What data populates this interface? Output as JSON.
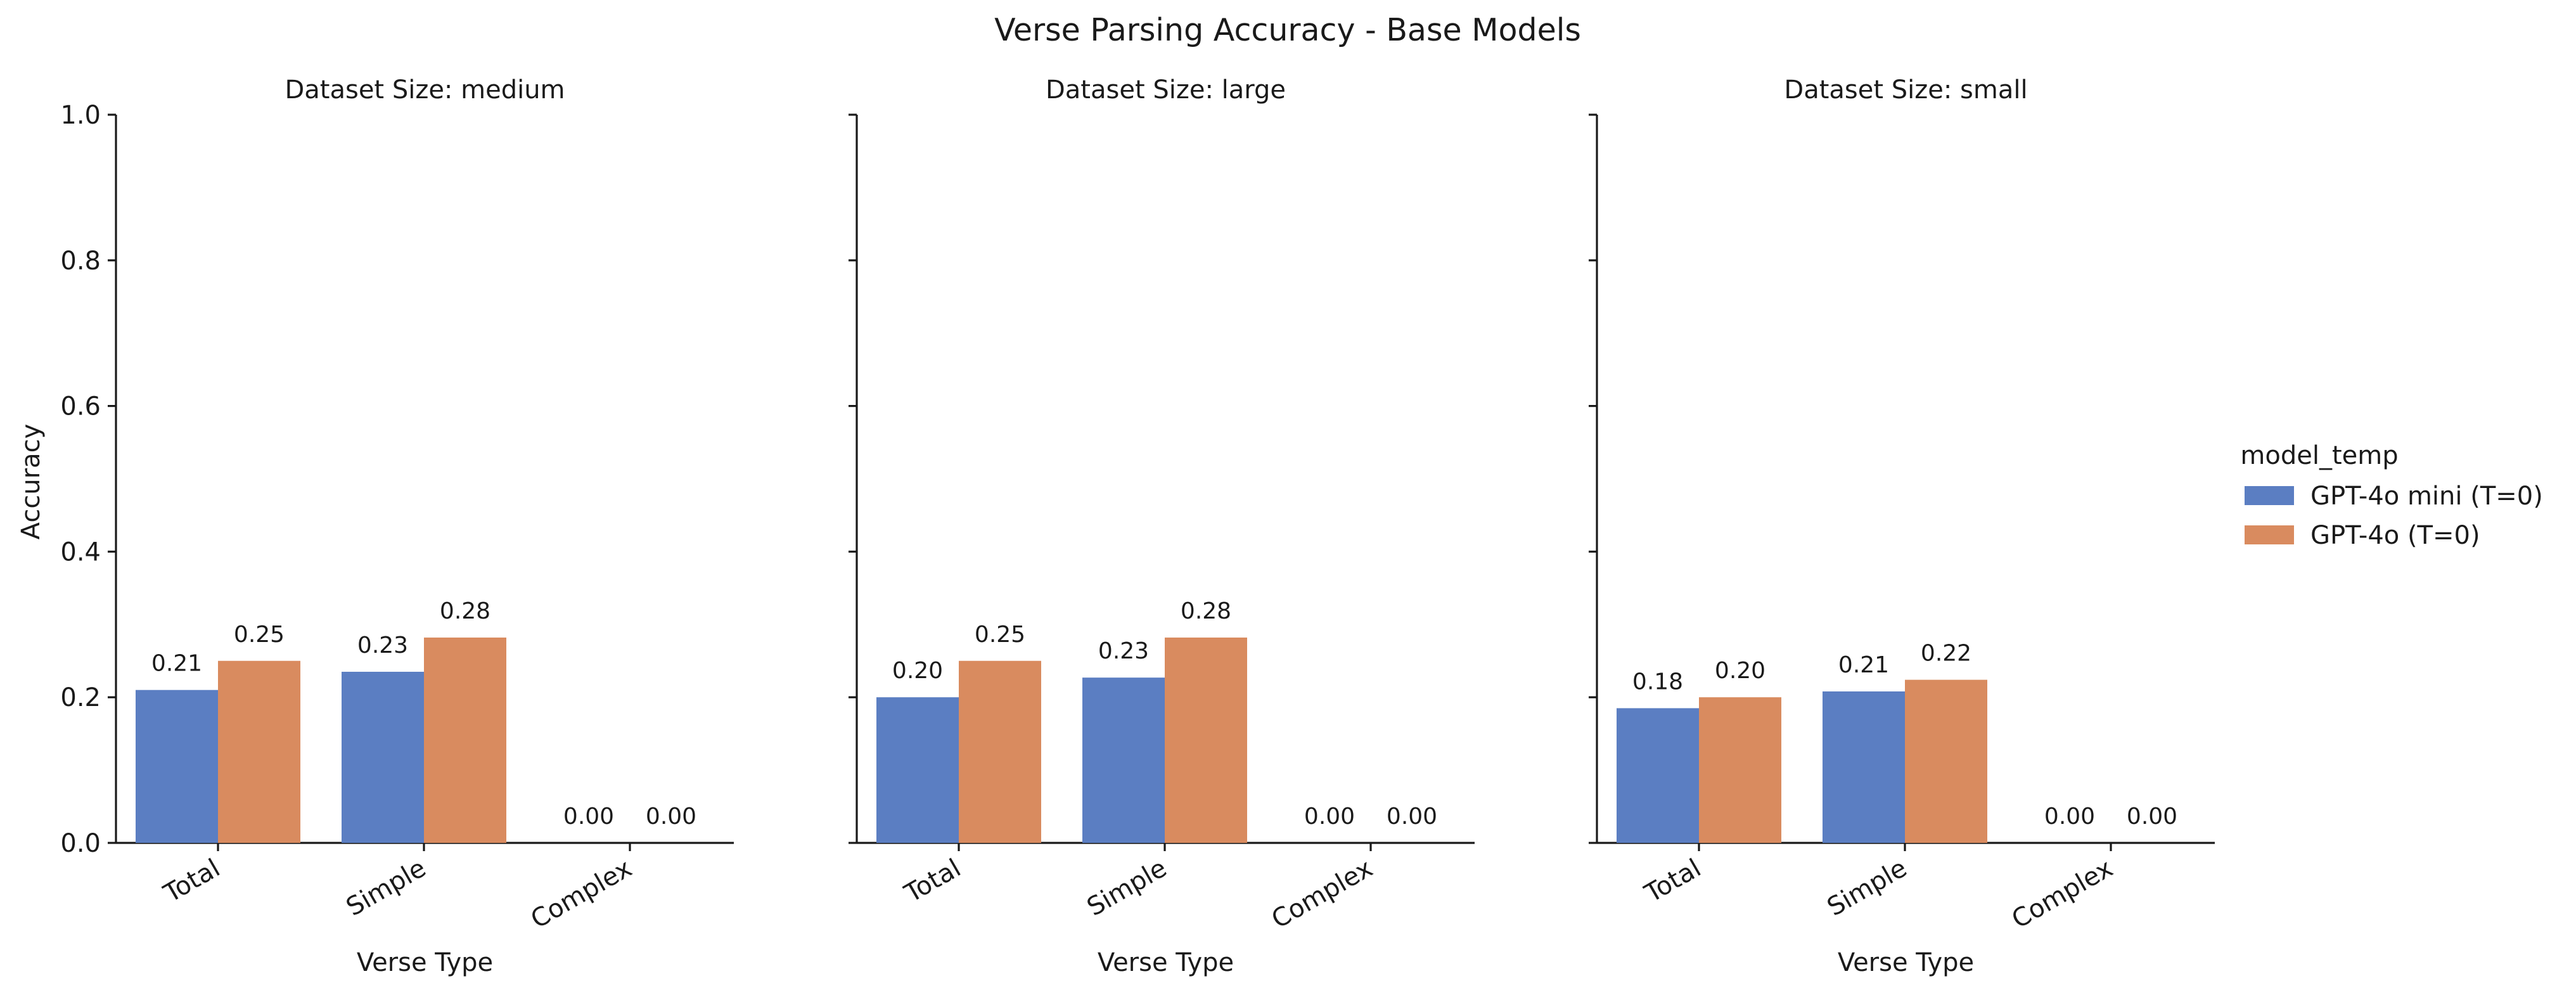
{
  "chart_data": {
    "type": "bar",
    "title": "Verse Parsing Accuracy - Base Models",
    "ylabel": "Accuracy",
    "xlabel": "Verse Type",
    "ylim": [
      0,
      1.0
    ],
    "yticks": [
      "0.0",
      "0.2",
      "0.4",
      "0.6",
      "0.8",
      "1.0"
    ],
    "categories": [
      "Total",
      "Simple",
      "Complex"
    ],
    "legend": {
      "title": "model_temp",
      "placement": "right",
      "entries": [
        {
          "name": "GPT-4o mini (T=0)",
          "color": "#5b7ec2"
        },
        {
          "name": "GPT-4o (T=0)",
          "color": "#d98b5f"
        }
      ]
    },
    "panels": [
      {
        "title": "Dataset Size: medium",
        "series": [
          {
            "name": "GPT-4o mini (T=0)",
            "values": [
              0.21,
              0.235,
              0.0
            ],
            "labels": [
              "0.21",
              "0.23",
              "0.00"
            ]
          },
          {
            "name": "GPT-4o (T=0)",
            "values": [
              0.25,
              0.282,
              0.0
            ],
            "labels": [
              "0.25",
              "0.28",
              "0.00"
            ]
          }
        ]
      },
      {
        "title": "Dataset Size: large",
        "series": [
          {
            "name": "GPT-4o mini (T=0)",
            "values": [
              0.2,
              0.227,
              0.0
            ],
            "labels": [
              "0.20",
              "0.23",
              "0.00"
            ]
          },
          {
            "name": "GPT-4o (T=0)",
            "values": [
              0.25,
              0.282,
              0.0
            ],
            "labels": [
              "0.25",
              "0.28",
              "0.00"
            ]
          }
        ]
      },
      {
        "title": "Dataset Size: small",
        "series": [
          {
            "name": "GPT-4o mini (T=0)",
            "values": [
              0.185,
              0.208,
              0.0
            ],
            "labels": [
              "0.18",
              "0.21",
              "0.00"
            ]
          },
          {
            "name": "GPT-4o (T=0)",
            "values": [
              0.2,
              0.224,
              0.0
            ],
            "labels": [
              "0.20",
              "0.22",
              "0.00"
            ]
          }
        ]
      }
    ]
  }
}
